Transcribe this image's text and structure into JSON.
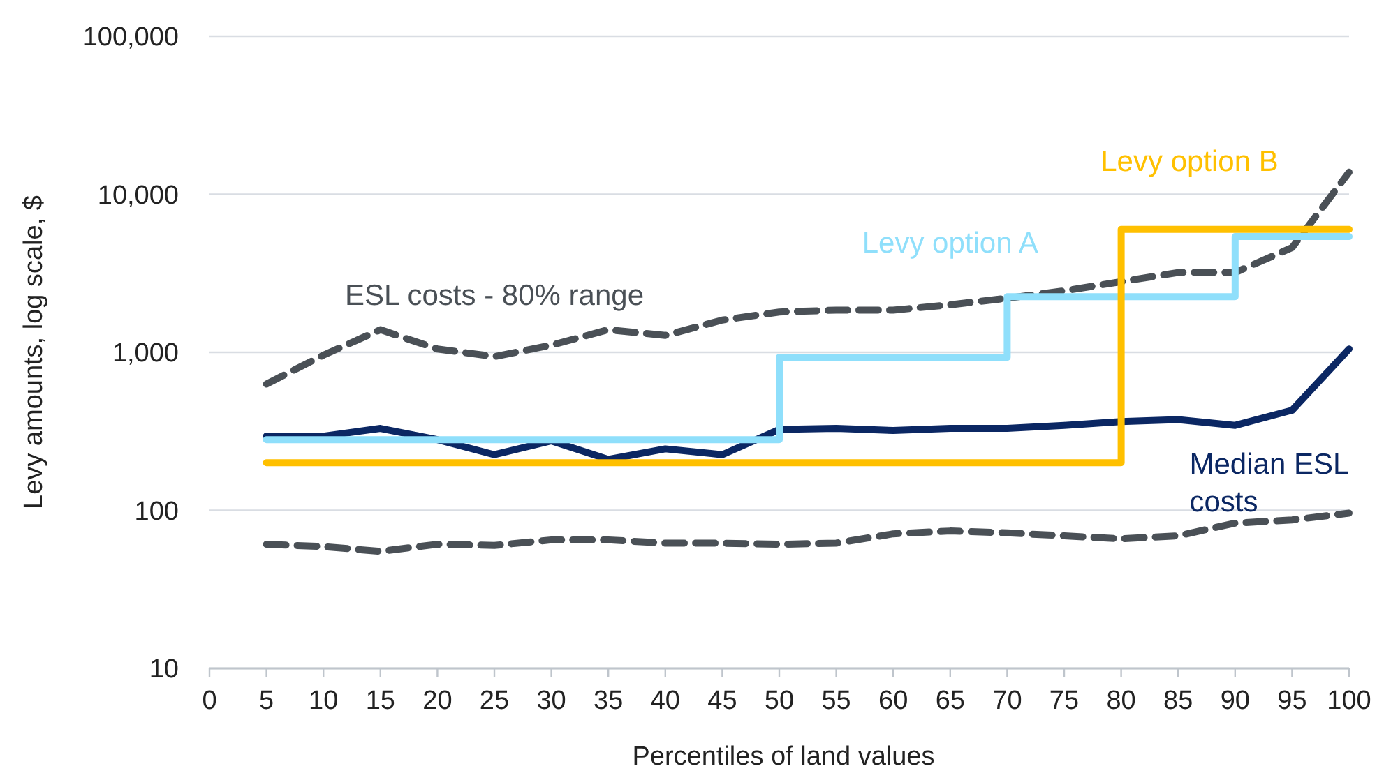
{
  "chart_data": {
    "type": "line",
    "xlabel": "Percentiles of land values",
    "ylabel": "Levy amounts, log scale, $",
    "log": "y",
    "grid": "y",
    "line_style": "solid",
    "marker": "none",
    "xlim": [
      0,
      100
    ],
    "xticks": [
      0,
      5,
      10,
      15,
      20,
      25,
      30,
      35,
      40,
      45,
      50,
      55,
      60,
      65,
      70,
      75,
      80,
      85,
      90,
      95,
      100
    ],
    "ylim": [
      10,
      100000
    ],
    "yticks": [
      {
        "value": 10,
        "label": "10"
      },
      {
        "value": 100,
        "label": "100"
      },
      {
        "value": 1000,
        "label": "1,000"
      },
      {
        "value": 10000,
        "label": "10,000"
      },
      {
        "value": 100000,
        "label": "100,000"
      }
    ],
    "x": [
      5,
      10,
      15,
      20,
      25,
      30,
      35,
      40,
      45,
      50,
      55,
      60,
      65,
      70,
      75,
      80,
      85,
      90,
      95,
      100
    ],
    "series": [
      {
        "name": "ESL costs - 80% range",
        "color": "#4a5056",
        "line_style": "dashed",
        "values": [
          630,
          960,
          1390,
          1050,
          940,
          1110,
          1390,
          1280,
          1600,
          1800,
          1850,
          1850,
          2000,
          2200,
          2450,
          2800,
          3200,
          3200,
          4600,
          13800
        ]
      },
      {
        "color": "#4a5056",
        "line_style": "dashed",
        "values": [
          61,
          59,
          55,
          61,
          60,
          65,
          65,
          62,
          62,
          61,
          62,
          71,
          74,
          72,
          69,
          66,
          69,
          83,
          87,
          96
        ]
      },
      {
        "name": "Median ESL costs",
        "color": "#0b2763",
        "values": [
          295,
          295,
          330,
          280,
          225,
          275,
          210,
          245,
          225,
          325,
          330,
          320,
          330,
          330,
          345,
          365,
          375,
          345,
          430,
          1050
        ]
      },
      {
        "name": "Levy option A",
        "color": "#8fdffb",
        "type": "step",
        "x": [
          5,
          50,
          70,
          90,
          100
        ],
        "values": [
          280,
          930,
          2250,
          5400,
          5400
        ]
      },
      {
        "name": "Levy option B",
        "color": "#ffc000",
        "type": "step",
        "x": [
          5,
          80,
          100
        ],
        "values": [
          200,
          6000,
          6000
        ]
      }
    ]
  }
}
